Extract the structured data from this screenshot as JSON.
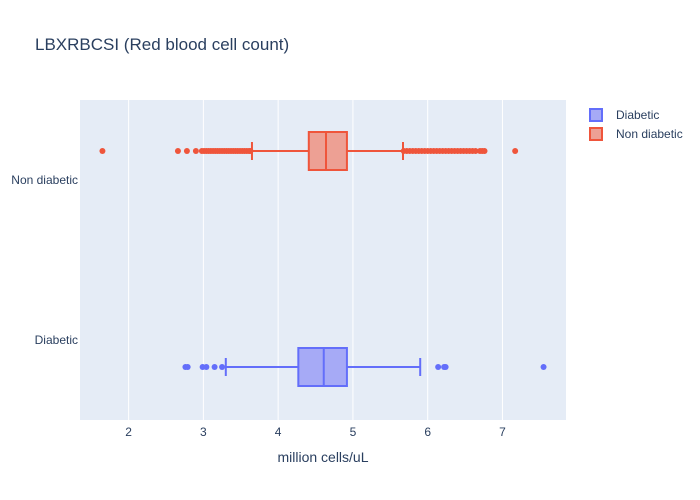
{
  "chart_data": {
    "type": "box",
    "orientation": "horizontal",
    "title": "LBXRBCSI (Red blood cell count)",
    "xlabel": "million cells/uL",
    "ylabel": "",
    "xlim": [
      1.35,
      7.85
    ],
    "xticks": [
      "2",
      "3",
      "4",
      "5",
      "6",
      "7"
    ],
    "grid": true,
    "legend_position": "top-right",
    "categories": [
      "Diabetic",
      "Non diabetic"
    ],
    "series": [
      {
        "name": "Diabetic",
        "category": "Diabetic",
        "color": "#636efa",
        "fill": "#a6aaf6",
        "lower_fence": 3.3,
        "q1": 4.27,
        "median": 4.61,
        "q3": 4.92,
        "upper_fence": 5.9,
        "outliers": [
          2.76,
          2.79,
          2.99,
          3.04,
          3.15,
          3.25,
          6.14,
          6.22,
          6.24,
          7.55
        ]
      },
      {
        "name": "Non diabetic",
        "category": "Non diabetic",
        "color": "#ef553b",
        "fill": "#eda094",
        "lower_fence": 3.65,
        "q1": 4.41,
        "median": 4.64,
        "q3": 4.92,
        "upper_fence": 5.67,
        "outliers": [
          1.65,
          2.66,
          2.78,
          2.9,
          2.98,
          3.01,
          3.04,
          3.07,
          3.1,
          3.13,
          3.16,
          3.19,
          3.22,
          3.25,
          3.28,
          3.31,
          3.34,
          3.37,
          3.4,
          3.43,
          3.46,
          3.49,
          3.52,
          3.55,
          3.58,
          3.61,
          3.63,
          5.68,
          5.72,
          5.76,
          5.8,
          5.84,
          5.88,
          5.92,
          5.96,
          6.0,
          6.04,
          6.08,
          6.12,
          6.16,
          6.2,
          6.24,
          6.28,
          6.32,
          6.36,
          6.4,
          6.44,
          6.48,
          6.52,
          6.56,
          6.6,
          6.64,
          6.7,
          6.73,
          6.76,
          7.17
        ]
      }
    ]
  }
}
